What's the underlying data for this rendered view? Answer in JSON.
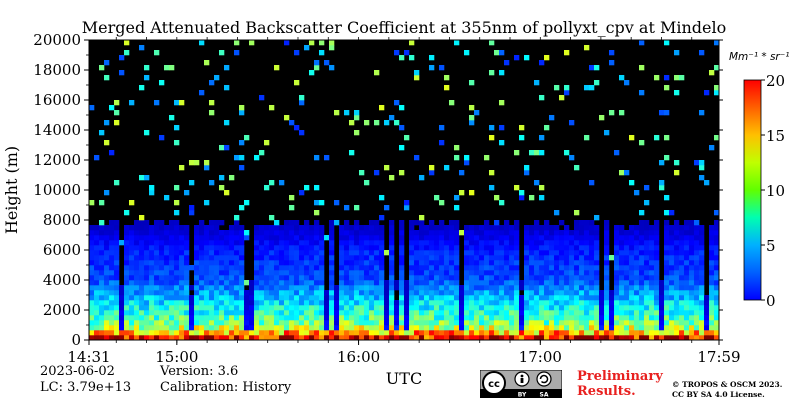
{
  "chart_data": {
    "type": "heatmap",
    "title": "Merged Attenuated Backscatter Coefficient at 355nm of pollyxt_cpv at Mindelo",
    "xlabel": "UTC",
    "ylabel": "Height (m)",
    "x_ticks": [
      "14:31",
      "15:00",
      "16:00",
      "17:00",
      "17:59"
    ],
    "x_tick_hours": [
      14.5167,
      15.0,
      16.0,
      17.0,
      17.9833
    ],
    "xlim_hours": [
      14.5167,
      17.9833
    ],
    "y_ticks": [
      0,
      2000,
      4000,
      6000,
      8000,
      10000,
      12000,
      14000,
      16000,
      18000,
      20000
    ],
    "ylim": [
      0,
      20000
    ],
    "colorbar": {
      "unit": "Mm⁻¹ * sr⁻¹",
      "ticks": [
        0,
        5,
        10,
        15,
        20
      ],
      "range": [
        0,
        20
      ],
      "colormap": "jet"
    },
    "description_profile": [
      {
        "height_m": 0,
        "value": 20
      },
      {
        "height_m": 500,
        "value": 14
      },
      {
        "height_m": 1000,
        "value": 10
      },
      {
        "height_m": 2000,
        "value": 8
      },
      {
        "height_m": 3000,
        "value": 6
      },
      {
        "height_m": 4000,
        "value": 4
      },
      {
        "height_m": 6000,
        "value": 3
      },
      {
        "height_m": 8000,
        "value": 1
      },
      {
        "height_m": 12000,
        "value": 0
      }
    ]
  },
  "footer": {
    "date": "2023-06-02",
    "lc": "LC: 3.79e+13",
    "version": "Version: 3.6",
    "calibration": "Calibration: History",
    "preliminary_line1": "Preliminary",
    "preliminary_line2": "Results.",
    "copyright_line1": "© TROPOS & OSCM 2023.",
    "copyright_line2": "CC BY SA 4.0 License.",
    "license_badge": "cc BY SA"
  },
  "colors": {
    "background": "#000000",
    "title": "#000000",
    "preliminary": "#e8201f"
  }
}
